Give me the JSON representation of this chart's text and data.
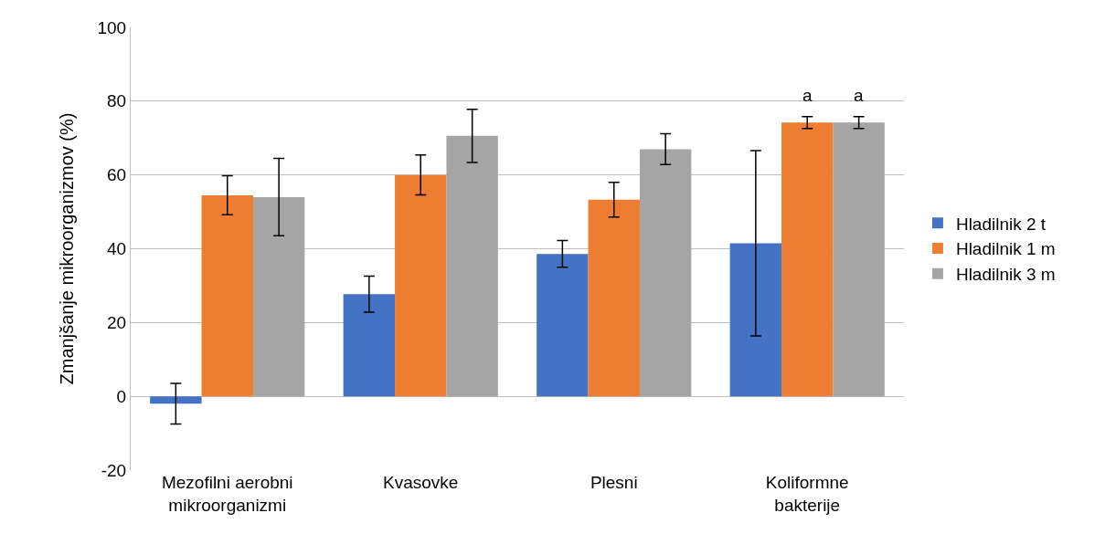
{
  "chart_data": {
    "type": "bar",
    "ylabel": "Zmanjšanje mikroorganizmov (%)",
    "categories": [
      "Mezofilni aerobni mikroorganizmi",
      "Kvasovke",
      "Plesni",
      "Koliformne bakterije"
    ],
    "series": [
      {
        "name": "Hladilnik 2 t",
        "color": "#4472c4",
        "values": [
          -2,
          27.7,
          38.6,
          41.5
        ],
        "errors": [
          5.5,
          4.9,
          3.6,
          25.1
        ]
      },
      {
        "name": "Hladilnik 1 m",
        "color": "#ed7d31",
        "values": [
          54.5,
          60,
          53.3,
          74.2
        ],
        "errors": [
          5.3,
          5.4,
          4.7,
          1.6
        ]
      },
      {
        "name": "Hladilnik 3 m",
        "color": "#a5a5a5",
        "values": [
          54,
          70.6,
          67,
          74.2
        ],
        "errors": [
          10.5,
          7.2,
          4.2,
          1.6
        ]
      }
    ],
    "annotations": [
      {
        "text": "a",
        "x": "Koliformne bakterije",
        "y": 74.2
      },
      {
        "text": "a",
        "x": "Koliformne bakterije",
        "y": 74.2
      }
    ],
    "ylim": [
      -20,
      100
    ],
    "yticks": [
      -20,
      0,
      20,
      40,
      60,
      80,
      100
    ],
    "grid": "y",
    "legend": "right"
  }
}
